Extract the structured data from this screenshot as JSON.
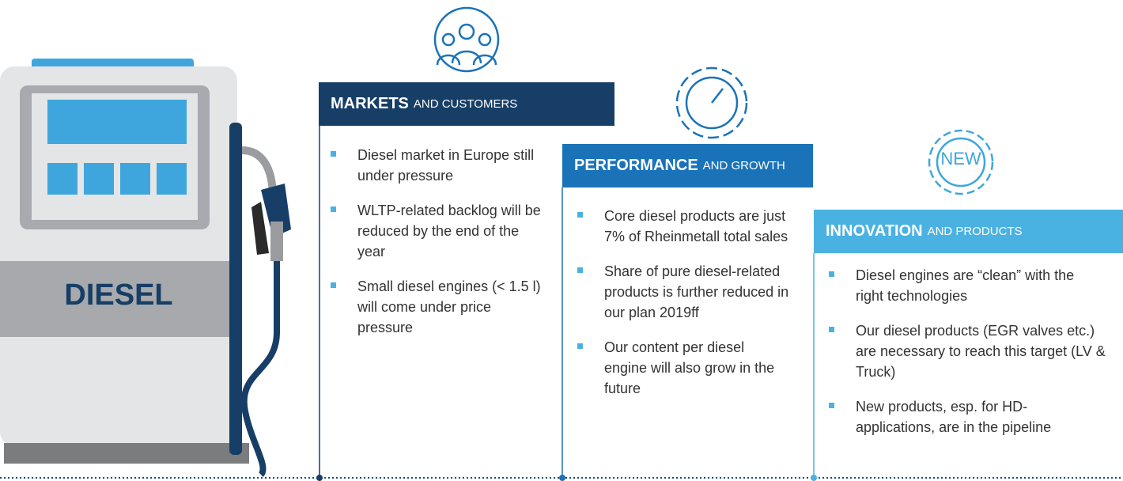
{
  "pump": {
    "label": "DIESEL"
  },
  "icons": [
    {
      "label": "NEW"
    }
  ],
  "columns": [
    {
      "title_bold": "MARKETS",
      "title_rest": "AND CUSTOMERS",
      "bullets": [
        "Diesel market in Europe still under pressure",
        "WLTP-related backlog will be reduced by the end of the year",
        "Small diesel engines (< 1.5 l) will come under price pressure"
      ]
    },
    {
      "title_bold": "PERFORMANCE",
      "title_rest": "AND GROWTH",
      "bullets": [
        "Core diesel products are just 7% of Rheinmetall total sales",
        "Share of pure diesel-related products is further reduced in our plan 2019ff",
        "Our content per diesel engine will also grow in the future"
      ]
    },
    {
      "title_bold": "INNOVATION",
      "title_rest": "AND PRODUCTS",
      "bullets": [
        "Diesel engines are “clean” with the right technologies",
        "Our diesel products (EGR valves etc.) are necessary to reach this target (LV & Truck)",
        "New products, esp. for HD-applications, are in the pipeline"
      ]
    }
  ]
}
